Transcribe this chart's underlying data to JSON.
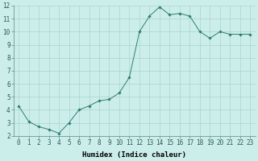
{
  "x": [
    0,
    1,
    2,
    3,
    4,
    5,
    6,
    7,
    8,
    9,
    10,
    11,
    12,
    13,
    14,
    15,
    16,
    17,
    18,
    19,
    20,
    21,
    22,
    23
  ],
  "y": [
    4.3,
    3.1,
    2.7,
    2.5,
    2.2,
    3.0,
    4.0,
    4.3,
    4.7,
    4.8,
    5.3,
    6.5,
    10.0,
    11.2,
    11.9,
    11.3,
    11.4,
    11.2,
    10.0,
    9.5,
    10.0,
    9.8,
    9.8,
    9.8
  ],
  "line_color": "#2e7d6e",
  "marker": "D",
  "marker_size": 1.8,
  "bg_color": "#cceeea",
  "grid_color": "#aad4ce",
  "xlabel": "Humidex (Indice chaleur)",
  "xlim": [
    -0.5,
    23.5
  ],
  "ylim": [
    2,
    12
  ],
  "yticks": [
    2,
    3,
    4,
    5,
    6,
    7,
    8,
    9,
    10,
    11,
    12
  ],
  "xticks": [
    0,
    1,
    2,
    3,
    4,
    5,
    6,
    7,
    8,
    9,
    10,
    11,
    12,
    13,
    14,
    15,
    16,
    17,
    18,
    19,
    20,
    21,
    22,
    23
  ],
  "tick_label_size": 5.5,
  "xlabel_size": 6.5,
  "linewidth": 0.7
}
